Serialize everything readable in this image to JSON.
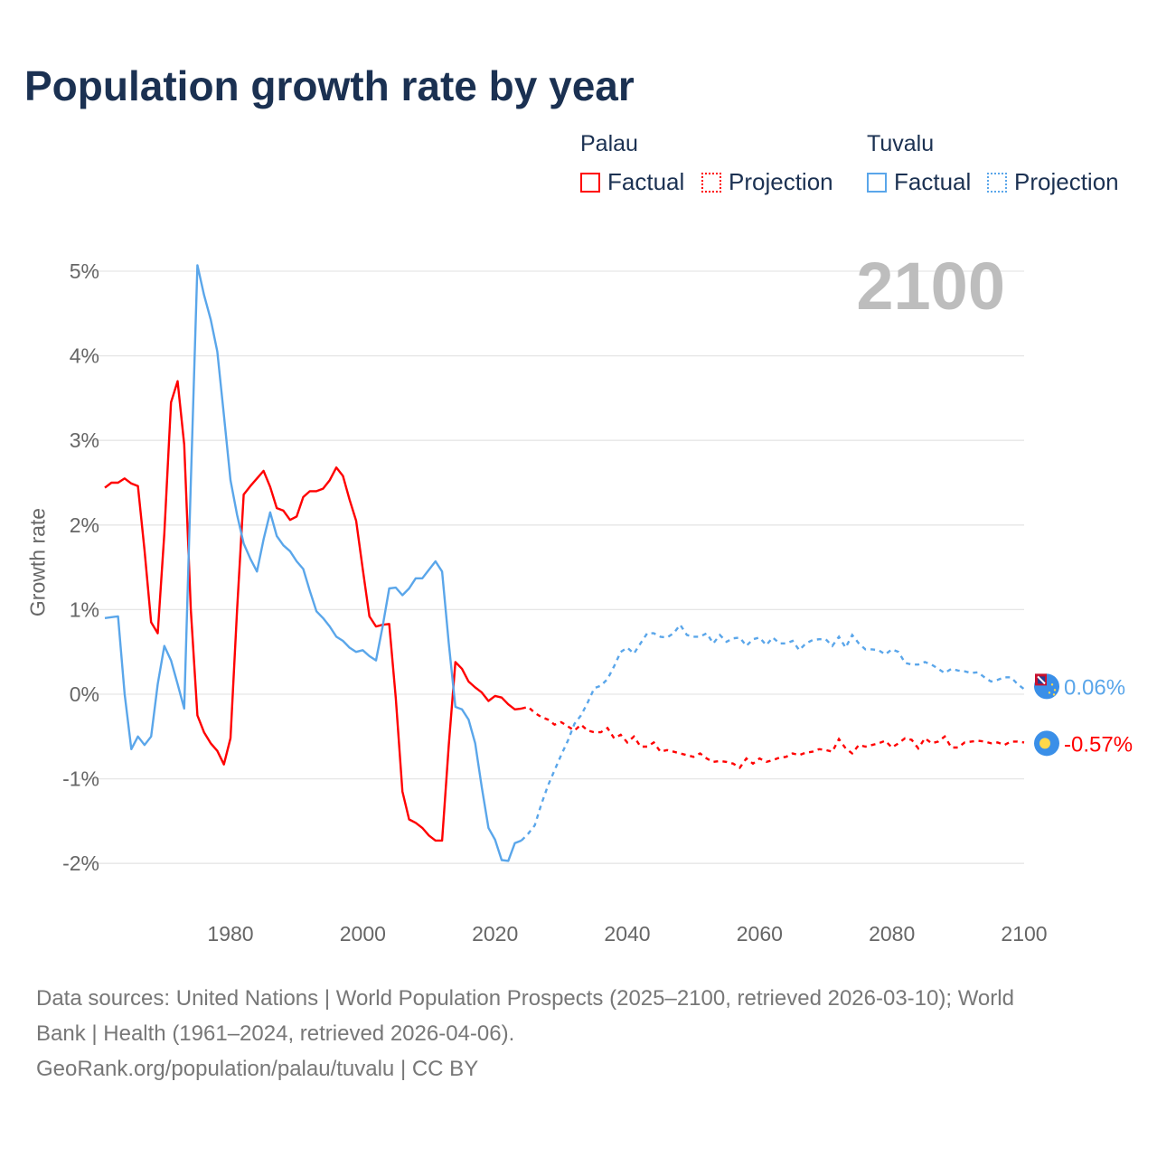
{
  "title": "Population growth rate by year",
  "legend": {
    "groups": [
      {
        "name": "Palau",
        "color": "#ff0000",
        "factual": "Factual",
        "projection": "Projection"
      },
      {
        "name": "Tuvalu",
        "color": "#5aa6ea",
        "factual": "Factual",
        "projection": "Projection"
      }
    ]
  },
  "year_display": "2100",
  "footer": {
    "line1": "Data sources: United Nations | World Population Prospects (2025–2100, retrieved 2026-03-10); World",
    "line2": "Bank | Health (1961–2024, retrieved 2026-04-06).",
    "line3": "GeoRank.org/population/palau/tuvalu | CC BY"
  },
  "chart_data": {
    "type": "line",
    "title": "Population growth rate by year",
    "xlabel": "",
    "ylabel": "Growth rate",
    "xlim": [
      1961,
      2100
    ],
    "ylim": [
      -2,
      5
    ],
    "x_ticks": [
      1980,
      2000,
      2020,
      2040,
      2060,
      2080,
      2100
    ],
    "x_tick_labels": [
      "1980",
      "2000",
      "2020",
      "2040",
      "2060",
      "2080",
      "2100"
    ],
    "y_ticks": [
      -2,
      -1,
      0,
      1,
      2,
      3,
      4,
      5
    ],
    "y_tick_labels": [
      "-2%",
      "-1%",
      "0%",
      "1%",
      "2%",
      "3%",
      "4%",
      "5%"
    ],
    "grid": true,
    "legend_position": "top-right",
    "series": [
      {
        "name": "Palau",
        "color": "#ff0000",
        "end_label": "-0.57%",
        "factual_start": 1961,
        "factual": [
          2.44,
          2.5,
          2.5,
          2.55,
          2.49,
          2.46,
          1.7,
          0.85,
          0.72,
          1.9,
          3.45,
          3.7,
          2.95,
          1.0,
          -0.25,
          -0.45,
          -0.58,
          -0.67,
          -0.83,
          -0.52,
          1.0,
          2.36,
          2.46,
          2.55,
          2.64,
          2.45,
          2.2,
          2.17,
          2.06,
          2.1,
          2.33,
          2.4,
          2.4,
          2.43,
          2.53,
          2.68,
          2.58,
          2.3,
          2.05,
          1.48,
          0.92,
          0.8,
          0.82,
          0.83,
          -0.05,
          -1.15,
          -1.48,
          -1.52,
          -1.58,
          -1.67,
          -1.73,
          -1.73,
          -0.6,
          0.38,
          0.3,
          0.15,
          0.08,
          0.02,
          -0.08,
          -0.02,
          -0.04,
          -0.12,
          -0.18,
          -0.17
        ],
        "projection_start": 2025,
        "projection": [
          -0.15,
          -0.22,
          -0.27,
          -0.3,
          -0.36,
          -0.33,
          -0.38,
          -0.43,
          -0.36,
          -0.43,
          -0.45,
          -0.45,
          -0.4,
          -0.52,
          -0.48,
          -0.57,
          -0.5,
          -0.62,
          -0.62,
          -0.57,
          -0.68,
          -0.66,
          -0.68,
          -0.7,
          -0.72,
          -0.74,
          -0.7,
          -0.76,
          -0.8,
          -0.79,
          -0.8,
          -0.82,
          -0.87,
          -0.76,
          -0.82,
          -0.76,
          -0.8,
          -0.78,
          -0.75,
          -0.74,
          -0.7,
          -0.72,
          -0.69,
          -0.68,
          -0.65,
          -0.66,
          -0.68,
          -0.53,
          -0.64,
          -0.7,
          -0.6,
          -0.62,
          -0.6,
          -0.58,
          -0.55,
          -0.63,
          -0.58,
          -0.52,
          -0.54,
          -0.64,
          -0.52,
          -0.58,
          -0.56,
          -0.5,
          -0.63,
          -0.63,
          -0.57,
          -0.56,
          -0.55,
          -0.56,
          -0.58,
          -0.57,
          -0.6,
          -0.56,
          -0.56,
          -0.57
        ]
      },
      {
        "name": "Tuvalu",
        "color": "#5aa6ea",
        "end_label": "0.06%",
        "factual_start": 1961,
        "factual": [
          0.9,
          0.91,
          0.92,
          0.0,
          -0.65,
          -0.5,
          -0.6,
          -0.5,
          0.12,
          0.57,
          0.4,
          0.12,
          -0.17,
          2.5,
          5.07,
          4.72,
          4.43,
          4.05,
          3.3,
          2.53,
          2.12,
          1.78,
          1.6,
          1.45,
          1.83,
          2.15,
          1.87,
          1.76,
          1.69,
          1.57,
          1.48,
          1.22,
          0.98,
          0.9,
          0.8,
          0.68,
          0.63,
          0.55,
          0.5,
          0.52,
          0.45,
          0.4,
          0.8,
          1.25,
          1.26,
          1.17,
          1.25,
          1.37,
          1.37,
          1.47,
          1.57,
          1.45,
          0.6,
          -0.15,
          -0.18,
          -0.3,
          -0.58,
          -1.1,
          -1.58,
          -1.72,
          -1.96,
          -1.97,
          -1.76,
          -1.73
        ],
        "projection_start": 2025,
        "projection": [
          -1.65,
          -1.55,
          -1.3,
          -1.08,
          -0.9,
          -0.72,
          -0.55,
          -0.35,
          -0.25,
          -0.1,
          0.07,
          0.1,
          0.18,
          0.33,
          0.5,
          0.55,
          0.48,
          0.6,
          0.72,
          0.72,
          0.68,
          0.67,
          0.72,
          0.82,
          0.7,
          0.68,
          0.68,
          0.72,
          0.6,
          0.7,
          0.62,
          0.66,
          0.67,
          0.57,
          0.65,
          0.67,
          0.58,
          0.67,
          0.6,
          0.6,
          0.63,
          0.52,
          0.6,
          0.64,
          0.65,
          0.65,
          0.57,
          0.68,
          0.55,
          0.7,
          0.6,
          0.53,
          0.53,
          0.52,
          0.47,
          0.53,
          0.5,
          0.37,
          0.35,
          0.35,
          0.38,
          0.35,
          0.3,
          0.25,
          0.3,
          0.28,
          0.27,
          0.25,
          0.26,
          0.2,
          0.15,
          0.17,
          0.2,
          0.2,
          0.12,
          0.06
        ]
      }
    ]
  }
}
